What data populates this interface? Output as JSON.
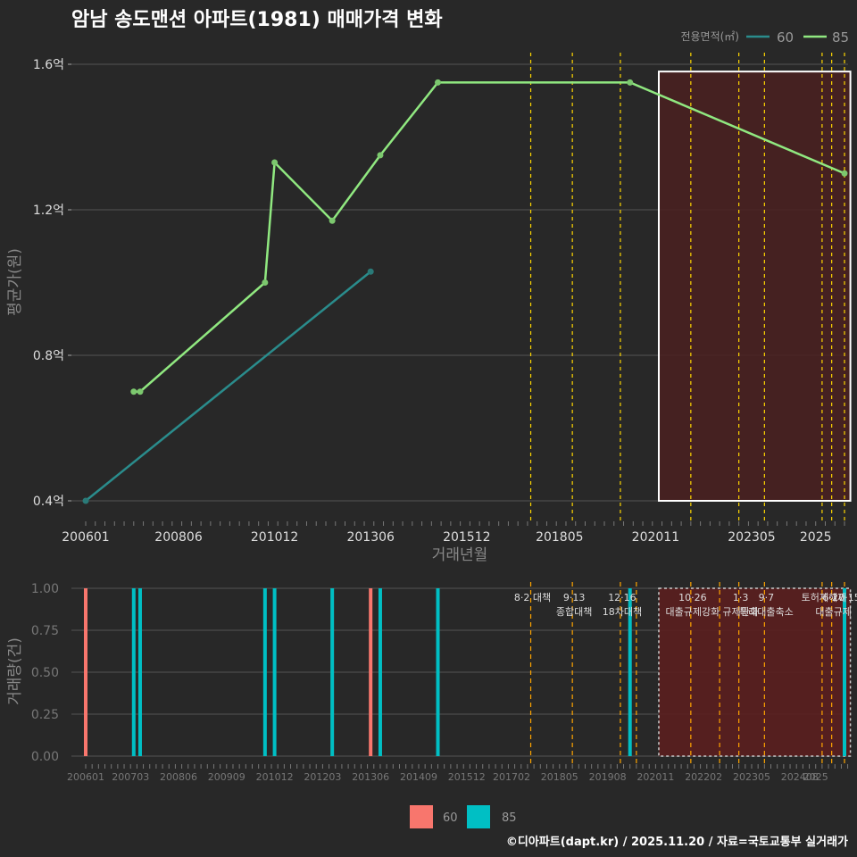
{
  "title": "암남 송도맨션 아파트(1981) 매매가격 변화",
  "footer": "©디아파트(dapt.kr) / 2025.11.20 / 자료=국토교통부 실거래가",
  "legend_top_title": "전용면적(㎡)",
  "colors": {
    "s60_line": "#2a8c8c",
    "s85_line": "#90e880",
    "s60_bar": "#f8766d",
    "s85_bar": "#00bfc4",
    "policy": "#ffd700",
    "policy_bottom": "#ffa500",
    "shade": "#4a2020"
  },
  "chart_data": [
    {
      "type": "line",
      "title": "암남 송도맨션 아파트(1981) 매매가격 변화",
      "xlabel": "거래년월",
      "ylabel": "평균가(원)",
      "xlim": [
        "2006-01",
        "2025-11"
      ],
      "ylim": [
        0.4,
        1.6
      ],
      "x_ticks": [
        "200601",
        "200806",
        "201012",
        "201306",
        "201512",
        "201805",
        "202011",
        "202305",
        "2025"
      ],
      "y_ticks": [
        "0.4억",
        "0.8억",
        "1.2억",
        "1.6억"
      ],
      "y_tick_values": [
        0.4,
        0.8,
        1.2,
        1.6
      ],
      "series": [
        {
          "name": "60",
          "points": [
            [
              "2006-01",
              0.4
            ],
            [
              "2013-06",
              1.03
            ]
          ]
        },
        {
          "name": "85",
          "points": [
            [
              "2007-04",
              0.7
            ],
            [
              "2007-06",
              0.7
            ],
            [
              "2010-09",
              1.0
            ],
            [
              "2010-12",
              1.33
            ],
            [
              "2012-06",
              1.17
            ],
            [
              "2013-09",
              1.35
            ],
            [
              "2015-03",
              1.55
            ],
            [
              "2020-03",
              1.55
            ],
            [
              "2025-10",
              1.3
            ]
          ]
        }
      ],
      "policy_lines": [
        "2017-08",
        "2018-09",
        "2019-12",
        "2021-10",
        "2023-01",
        "2023-09",
        "2025-03",
        "2025-06",
        "2025-10"
      ],
      "shaded_range": [
        "2020-12",
        "2025-11"
      ]
    },
    {
      "type": "bar",
      "xlabel": "",
      "ylabel": "거래량(건)",
      "ylim": [
        0,
        1
      ],
      "y_ticks": [
        "0.00",
        "0.25",
        "0.50",
        "0.75",
        "1.00"
      ],
      "y_tick_values": [
        0,
        0.25,
        0.5,
        0.75,
        1.0
      ],
      "x_ticks": [
        "200601",
        "200703",
        "200806",
        "200909",
        "201012",
        "201203",
        "201306",
        "201409",
        "201512",
        "201702",
        "201805",
        "201908",
        "202011",
        "202202",
        "202305",
        "202408",
        "2025"
      ],
      "series": [
        {
          "name": "60",
          "points": [
            [
              "2006-01",
              1
            ],
            [
              "2013-06",
              1
            ]
          ]
        },
        {
          "name": "85",
          "points": [
            [
              "2007-04",
              1
            ],
            [
              "2007-06",
              1
            ],
            [
              "2010-09",
              1
            ],
            [
              "2010-12",
              1
            ],
            [
              "2012-06",
              1
            ],
            [
              "2013-09",
              1
            ],
            [
              "2015-03",
              1
            ],
            [
              "2020-03",
              1
            ],
            [
              "2025-10",
              1
            ]
          ]
        }
      ],
      "policy_lines": [
        "2017-08",
        "2018-09",
        "2019-12",
        "2020-05",
        "2021-10",
        "2022-07",
        "2023-01",
        "2023-09",
        "2025-03",
        "2025-06",
        "2025-10"
      ],
      "annotations": [
        {
          "date": "2017-08",
          "text": "8·2 대책"
        },
        {
          "date": "2018-09",
          "text": "9·13\n종합대책"
        },
        {
          "date": "2019-12",
          "text": "12·16\n18차대책"
        },
        {
          "date": "2021-10",
          "text": "10·26\n대출규제강화"
        },
        {
          "date": "2023-01",
          "text": "1·3\n규제완화"
        },
        {
          "date": "2023-09",
          "text": "9·7\n특례대출축소"
        },
        {
          "date": "2025-03",
          "text": "토허제해제"
        },
        {
          "date": "2025-06",
          "text": "6·27\n대출규제"
        },
        {
          "date": "2025-10",
          "text": "10·15"
        }
      ],
      "shaded_range": [
        "2020-12",
        "2025-11"
      ]
    }
  ],
  "bottom_legend": [
    {
      "label": "60",
      "color": "#f8766d"
    },
    {
      "label": "85",
      "color": "#00bfc4"
    }
  ]
}
